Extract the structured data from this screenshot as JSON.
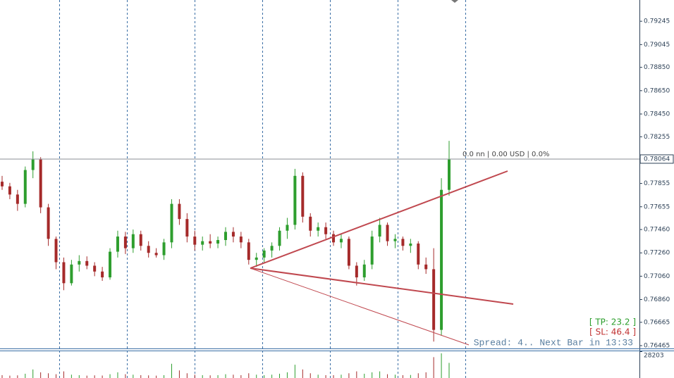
{
  "chart_data": {
    "type": "candlestick",
    "up_color": "#2e9e2e",
    "down_color": "#a52a2a",
    "open": [
      0.7787,
      0.7783,
      0.7776,
      0.7768,
      0.7797,
      0.7806,
      0.7765,
      0.7738,
      0.7718,
      0.77,
      0.7716,
      0.7719,
      0.7715,
      0.771,
      0.7705,
      0.7727,
      0.774,
      0.773,
      0.7742,
      0.7732,
      0.7726,
      0.7724,
      0.7735,
      0.7768,
      0.7755,
      0.774,
      0.7733,
      0.7736,
      0.7734,
      0.7737,
      0.7744,
      0.774,
      0.7735,
      0.772,
      0.7722,
      0.7728,
      0.7732,
      0.7745,
      0.775,
      0.7792,
      0.7757,
      0.7745,
      0.7748,
      0.7742,
      0.7735,
      0.7738,
      0.7715,
      0.7705,
      0.7716,
      0.774,
      0.775,
      0.7736,
      0.7738,
      0.7732,
      0.7734,
      0.7716,
      0.7712,
      0.766,
      0.778
    ],
    "high": [
      0.7792,
      0.7786,
      0.778,
      0.78,
      0.7813,
      0.7808,
      0.7768,
      0.774,
      0.7722,
      0.772,
      0.7724,
      0.7723,
      0.7718,
      0.7714,
      0.773,
      0.7745,
      0.7744,
      0.7746,
      0.7745,
      0.7736,
      0.773,
      0.7738,
      0.7772,
      0.7772,
      0.776,
      0.7745,
      0.774,
      0.7742,
      0.774,
      0.7748,
      0.7748,
      0.7744,
      0.7738,
      0.7726,
      0.773,
      0.7735,
      0.7748,
      0.7756,
      0.7798,
      0.7795,
      0.776,
      0.7752,
      0.7752,
      0.7745,
      0.7742,
      0.774,
      0.7718,
      0.772,
      0.7745,
      0.7756,
      0.7752,
      0.7742,
      0.774,
      0.7738,
      0.7736,
      0.7722,
      0.773,
      0.779,
      0.7822
    ],
    "low": [
      0.778,
      0.7772,
      0.7762,
      0.7765,
      0.779,
      0.776,
      0.7732,
      0.7712,
      0.7694,
      0.7698,
      0.771,
      0.7712,
      0.7706,
      0.7702,
      0.7703,
      0.7722,
      0.7725,
      0.7726,
      0.7728,
      0.7722,
      0.7722,
      0.772,
      0.773,
      0.775,
      0.7735,
      0.7728,
      0.7728,
      0.773,
      0.773,
      0.7732,
      0.7735,
      0.773,
      0.7716,
      0.7714,
      0.7718,
      0.7722,
      0.7728,
      0.7738,
      0.7746,
      0.7752,
      0.774,
      0.774,
      0.7738,
      0.7732,
      0.773,
      0.7712,
      0.7698,
      0.7702,
      0.7712,
      0.7735,
      0.7732,
      0.773,
      0.7728,
      0.7726,
      0.7712,
      0.7708,
      0.765,
      0.7655,
      0.7775
    ],
    "close": [
      0.7783,
      0.7776,
      0.7768,
      0.7797,
      0.7806,
      0.7765,
      0.7738,
      0.7718,
      0.77,
      0.7716,
      0.7719,
      0.7715,
      0.771,
      0.7705,
      0.7727,
      0.774,
      0.773,
      0.7742,
      0.7732,
      0.7726,
      0.7724,
      0.7735,
      0.7768,
      0.7755,
      0.774,
      0.7733,
      0.7736,
      0.7734,
      0.7737,
      0.7744,
      0.774,
      0.7735,
      0.772,
      0.7722,
      0.7728,
      0.7732,
      0.7745,
      0.775,
      0.7792,
      0.7757,
      0.7745,
      0.7748,
      0.7742,
      0.7735,
      0.7738,
      0.7715,
      0.7705,
      0.7716,
      0.774,
      0.775,
      0.7736,
      0.7738,
      0.7732,
      0.7734,
      0.7716,
      0.7712,
      0.766,
      0.778,
      0.7806
    ],
    "volume": [
      3000,
      2500,
      2800,
      4500,
      9000,
      6000,
      5000,
      4000,
      7000,
      3500,
      3000,
      2500,
      2800,
      2600,
      4000,
      6000,
      4000,
      3500,
      3000,
      2800,
      2500,
      3000,
      15000,
      8000,
      5000,
      3500,
      3000,
      2800,
      3000,
      4000,
      3500,
      3000,
      5000,
      3500,
      3000,
      3500,
      4500,
      6000,
      14000,
      9000,
      5000,
      3500,
      3000,
      3000,
      3500,
      5000,
      7000,
      4500,
      6000,
      7000,
      4000,
      3500,
      3000,
      3200,
      5000,
      6000,
      22000,
      26000,
      16000
    ],
    "ylim": [
      0.76441,
      0.79427
    ],
    "yticks": [
      0.79245,
      0.79045,
      {
        "value": 0.7885,
        "label": "0.78850"
      },
      {
        "value": 0.7865,
        "label": "0.78650"
      },
      {
        "value": 0.7845,
        "label": "0.78450"
      },
      0.78255,
      0.77855,
      0.77655,
      {
        "value": 0.7746,
        "label": "0.77460"
      },
      {
        "value": 0.7726,
        "label": "0.77260"
      },
      {
        "value": 0.7706,
        "label": "0.77060"
      },
      {
        "value": 0.7686,
        "label": "0.76860"
      },
      0.76665,
      0.76465
    ],
    "last_price": 0.78064,
    "volume_ylim": [
      0,
      28203
    ],
    "volume_yticks": [
      28203
    ],
    "info_text": "0.0 nn | 0.00 USD | 0.0%",
    "tp_label": "[ TP: 23.2 ]",
    "sl_label": "[ SL: 46.4 ]",
    "status_text": "Spread: 4.. Next Bar in 13:33"
  }
}
